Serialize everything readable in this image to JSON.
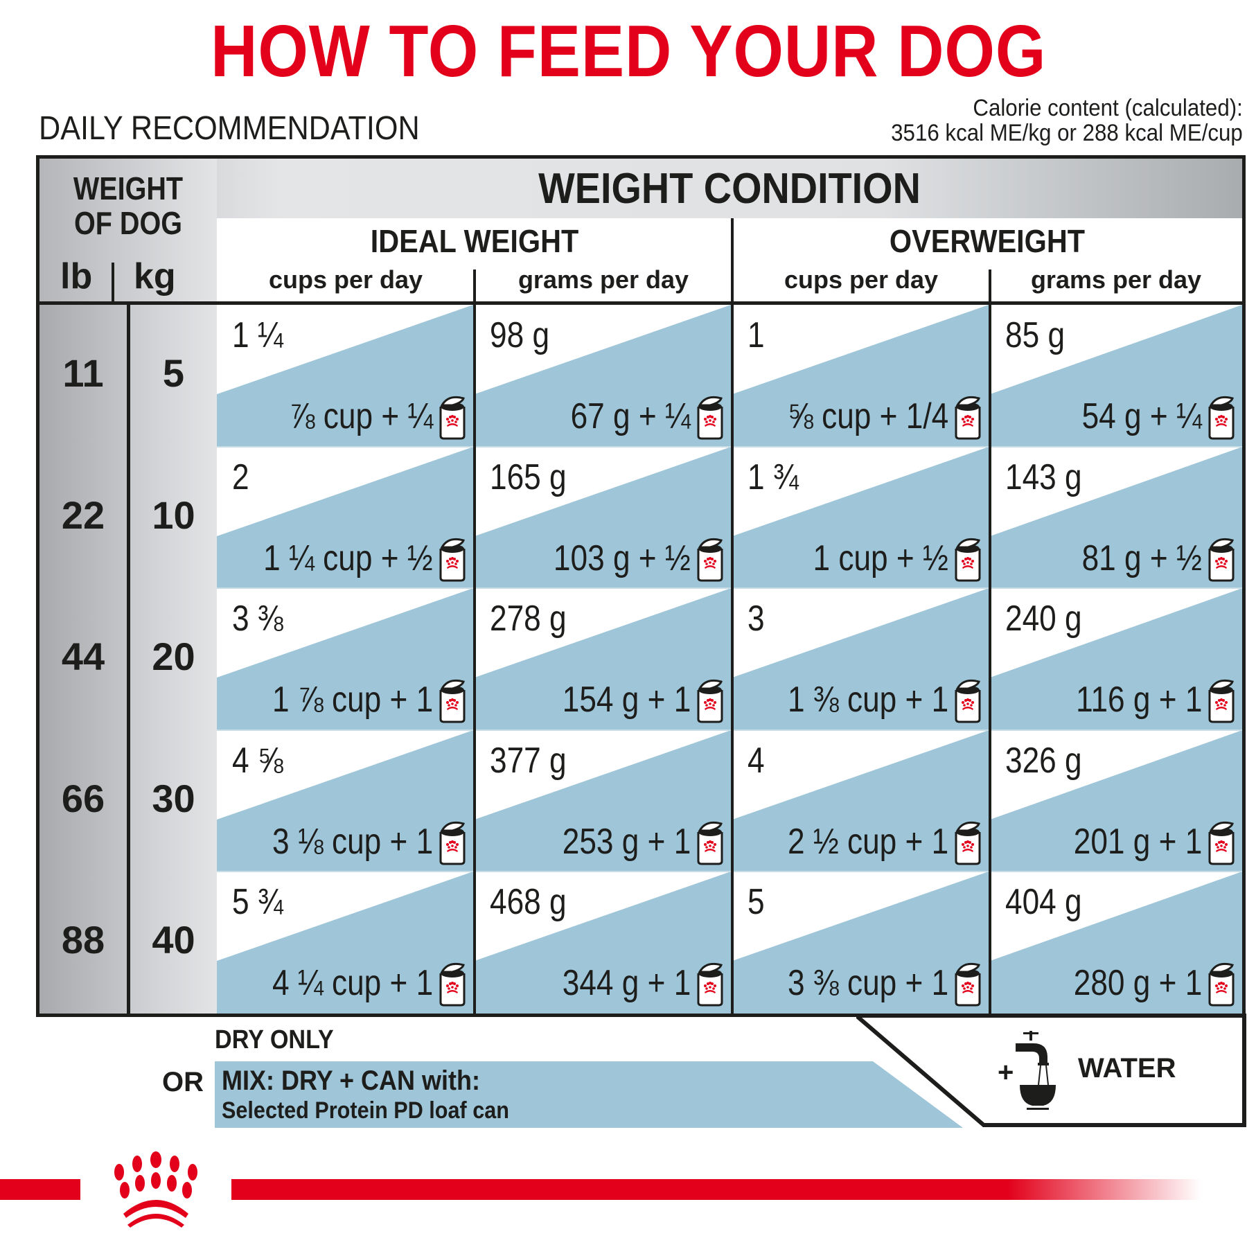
{
  "header": {
    "title": "HOW TO FEED YOUR DOG",
    "subtitle": "DAILY RECOMMENDATION",
    "calorie_line1": "Calorie content (calculated):",
    "calorie_line2": "3516 kcal ME/kg or 288 kcal ME/cup"
  },
  "colors": {
    "brand_red": "#e2001a",
    "mix_blue": "#9ec5d8",
    "text_dark": "#1d1d1b"
  },
  "table": {
    "weight_header_line1": "WEIGHT",
    "weight_header_line2": "OF DOG",
    "unit_lb": "lb",
    "unit_kg": "kg",
    "condition_title": "WEIGHT CONDITION",
    "conditions": [
      {
        "label": "IDEAL WEIGHT",
        "col_cups": "cups per day",
        "col_grams": "grams per day"
      },
      {
        "label": "OVERWEIGHT",
        "col_cups": "cups per day",
        "col_grams": "grams per day"
      }
    ],
    "rows": [
      {
        "lb": "11",
        "kg": "5",
        "cells": [
          {
            "dry": "1 ¼",
            "mix": "⅞ cup + ¼"
          },
          {
            "dry": "98 g",
            "mix": "67 g + ¼"
          },
          {
            "dry": "1",
            "mix": "⅝ cup + 1/4"
          },
          {
            "dry": "85 g",
            "mix": "54 g + ¼"
          }
        ]
      },
      {
        "lb": "22",
        "kg": "10",
        "cells": [
          {
            "dry": "2",
            "mix": "1 ¼ cup + ½"
          },
          {
            "dry": "165 g",
            "mix": "103 g + ½"
          },
          {
            "dry": "1 ¾",
            "mix": "1 cup + ½"
          },
          {
            "dry": "143 g",
            "mix": "81 g + ½"
          }
        ]
      },
      {
        "lb": "44",
        "kg": "20",
        "cells": [
          {
            "dry": "3 ⅜",
            "mix": "1 ⅞ cup + 1"
          },
          {
            "dry": "278 g",
            "mix": "154 g + 1"
          },
          {
            "dry": "3",
            "mix": "1 ⅜ cup + 1"
          },
          {
            "dry": "240 g",
            "mix": "116 g + 1"
          }
        ]
      },
      {
        "lb": "66",
        "kg": "30",
        "cells": [
          {
            "dry": "4 ⅝",
            "mix": "3 ⅛ cup + 1"
          },
          {
            "dry": "377 g",
            "mix": "253 g + 1"
          },
          {
            "dry": "4",
            "mix": "2 ½ cup + 1"
          },
          {
            "dry": "326 g",
            "mix": "201 g + 1"
          }
        ]
      },
      {
        "lb": "88",
        "kg": "40",
        "cells": [
          {
            "dry": "5 ¾",
            "mix": "4 ¼ cup + 1"
          },
          {
            "dry": "468 g",
            "mix": "344 g + 1"
          },
          {
            "dry": "5",
            "mix": "3 ⅜ cup + 1"
          },
          {
            "dry": "404 g",
            "mix": "280 g + 1"
          }
        ]
      }
    ],
    "can_icon": "royal-canin-can-icon"
  },
  "legend": {
    "dry_only": "DRY ONLY",
    "or": "OR",
    "mix_title": "MIX: DRY + CAN with:",
    "mix_subtitle": "Selected Protein PD loaf can",
    "plus": "+",
    "water_icon": "faucet-bowl-icon",
    "water_label": "WATER"
  },
  "footer": {
    "logo_icon": "royal-canin-crown-logo"
  }
}
